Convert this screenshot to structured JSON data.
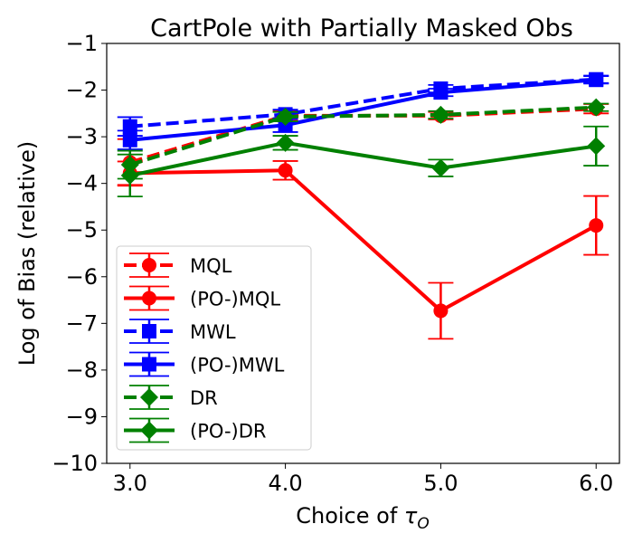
{
  "chart_data": {
    "type": "line",
    "title": "CartPole with Partially Masked Obs",
    "xlabel_prefix": "Choice of ",
    "xlabel_symbol": "τ",
    "xlabel_subscript": "O",
    "ylabel": "Log of Bias (relative)",
    "x": [
      3.0,
      4.0,
      5.0,
      6.0
    ],
    "xtick_labels": [
      "3.0",
      "4.0",
      "5.0",
      "6.0"
    ],
    "yticks": [
      -1,
      -2,
      -3,
      -4,
      -5,
      -6,
      -7,
      -8,
      -9,
      -10
    ],
    "ytick_labels": [
      "−1",
      "−2",
      "−3",
      "−4",
      "−5",
      "−6",
      "−7",
      "−8",
      "−9",
      "−10"
    ],
    "xlim": [
      2.85,
      6.15
    ],
    "ylim": [
      -10,
      -1
    ],
    "legend_position": "lower-left",
    "series": [
      {
        "name": "MQL",
        "color": "#ff0000",
        "dash": true,
        "marker": "circle",
        "values": [
          -3.55,
          -2.55,
          -2.55,
          -2.4
        ],
        "err": [
          0.5,
          0.1,
          0.08,
          0.1
        ]
      },
      {
        "name": "(PO-)MQL",
        "color": "#ff0000",
        "dash": false,
        "marker": "circle",
        "values": [
          -3.78,
          -3.72,
          -6.73,
          -4.9
        ],
        "err": [
          0.25,
          0.2,
          0.6,
          0.63
        ]
      },
      {
        "name": "MWL",
        "color": "#0000ff",
        "dash": true,
        "marker": "square",
        "values": [
          -2.78,
          -2.52,
          -1.97,
          -1.77
        ],
        "err": [
          0.2,
          0.1,
          0.08,
          0.08
        ]
      },
      {
        "name": "(PO-)MWL",
        "color": "#0000ff",
        "dash": false,
        "marker": "square",
        "values": [
          -3.07,
          -2.75,
          -2.05,
          -1.78
        ],
        "err": [
          0.2,
          0.15,
          0.08,
          0.08
        ]
      },
      {
        "name": "DR",
        "color": "#008000",
        "dash": true,
        "marker": "diamond",
        "values": [
          -3.6,
          -2.57,
          -2.53,
          -2.37
        ],
        "err": [
          0.3,
          0.1,
          0.08,
          0.08
        ]
      },
      {
        "name": "(PO-)DR",
        "color": "#008000",
        "dash": false,
        "marker": "diamond",
        "values": [
          -3.83,
          -3.13,
          -3.67,
          -3.2
        ],
        "err": [
          0.45,
          0.15,
          0.18,
          0.42
        ]
      }
    ]
  }
}
